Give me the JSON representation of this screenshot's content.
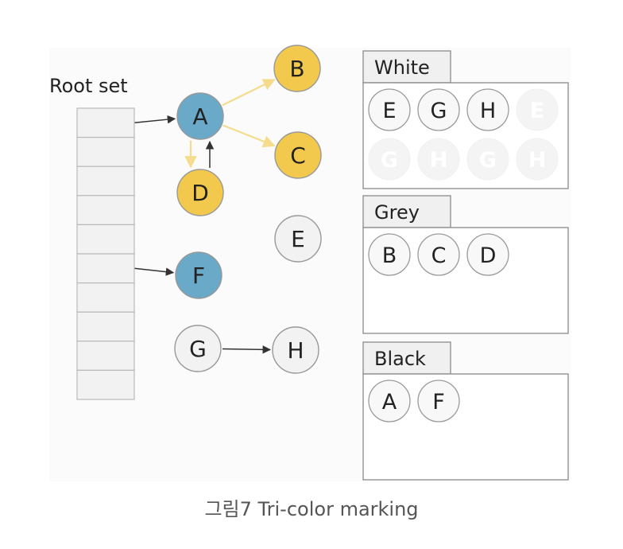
{
  "colors": {
    "blue": "#6aa9c7",
    "yellow": "#f2c94c",
    "grey_node": "#f2f2f2",
    "yellow_edge": "#f5dc8c",
    "dark_edge": "#333333",
    "panel_bg": "#f7f7f7"
  },
  "root_set": {
    "label": "Root set",
    "slots": 10
  },
  "graph": {
    "nodes": [
      {
        "id": "A",
        "label": "A",
        "color": "blue"
      },
      {
        "id": "B",
        "label": "B",
        "color": "yellow"
      },
      {
        "id": "C",
        "label": "C",
        "color": "yellow"
      },
      {
        "id": "D",
        "label": "D",
        "color": "yellow"
      },
      {
        "id": "E",
        "label": "E",
        "color": "grey_node"
      },
      {
        "id": "F",
        "label": "F",
        "color": "blue"
      },
      {
        "id": "G",
        "label": "G",
        "color": "grey_node"
      },
      {
        "id": "H",
        "label": "H",
        "color": "grey_node"
      }
    ],
    "edges": [
      {
        "from": "root0",
        "to": "A",
        "style": "dark"
      },
      {
        "from": "root5",
        "to": "F",
        "style": "dark"
      },
      {
        "from": "A",
        "to": "B",
        "style": "yellow"
      },
      {
        "from": "A",
        "to": "C",
        "style": "yellow"
      },
      {
        "from": "A",
        "to": "D",
        "style": "yellow"
      },
      {
        "from": "D",
        "to": "A",
        "style": "dark"
      },
      {
        "from": "G",
        "to": "H",
        "style": "dark"
      }
    ]
  },
  "sets": [
    {
      "label": "White",
      "items": [
        "E",
        "G",
        "H"
      ],
      "faded": [
        "E",
        "G",
        "H",
        "G",
        "H"
      ]
    },
    {
      "label": "Grey",
      "items": [
        "B",
        "C",
        "D"
      ],
      "faded": []
    },
    {
      "label": "Black",
      "items": [
        "A",
        "F"
      ],
      "faded": []
    }
  ],
  "caption": "그림7 Tri-color marking"
}
